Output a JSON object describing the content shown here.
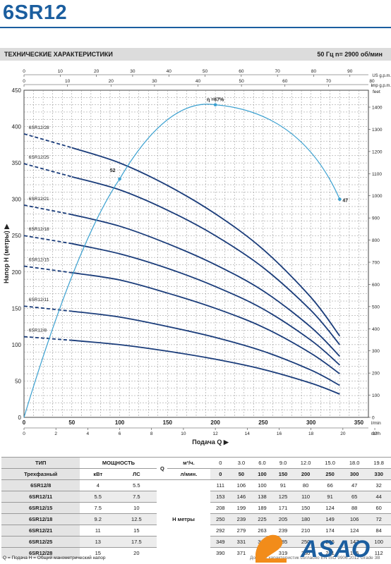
{
  "page": {
    "title": "6SR12",
    "section_title": "ТЕХНИЧЕСКИЕ ХАРАКТЕРИСТИКИ",
    "freq_label": "50 Гц   n= 2900  об/мин"
  },
  "chart_data": {
    "type": "line",
    "ylabel": "Напор  H  (метры)  ▶",
    "xlabel": "Подача  Q  ▶",
    "x_unit": "l/min",
    "top_axis1_unit": "US g.p.m.",
    "top_axis2_unit": "Imp g.p.m.",
    "right_axis_unit": "feet",
    "bottom_axis2_unit": "m³/h",
    "xlim": [
      0,
      360
    ],
    "ylim": [
      0,
      450
    ],
    "x_ticks": [
      0,
      50,
      100,
      150,
      200,
      250,
      300,
      350
    ],
    "y_ticks": [
      0,
      50,
      100,
      150,
      200,
      250,
      300,
      350,
      400,
      450
    ],
    "top_ticks_us": [
      0,
      10,
      20,
      30,
      40,
      50,
      60,
      70,
      80,
      90
    ],
    "top_ticks_imp": [
      0,
      10,
      20,
      30,
      40,
      50,
      60,
      70,
      80
    ],
    "bottom_ticks_m3h": [
      0,
      2,
      4,
      6,
      8,
      10,
      12,
      14,
      16,
      18,
      20,
      22
    ],
    "right_ticks_feet": [
      0,
      100,
      200,
      300,
      400,
      500,
      600,
      700,
      800,
      900,
      1000,
      1100,
      1200,
      1300,
      1400
    ],
    "grid": true,
    "series": [
      {
        "name": "6SR12/8",
        "x": [
          0,
          50,
          100,
          150,
          200,
          250,
          300,
          330
        ],
        "values": [
          111,
          106,
          100,
          91,
          80,
          66,
          47,
          32
        ]
      },
      {
        "name": "6SR12/11",
        "x": [
          0,
          50,
          100,
          150,
          200,
          250,
          300,
          330
        ],
        "values": [
          153,
          146,
          138,
          125,
          110,
          91,
          65,
          44
        ]
      },
      {
        "name": "6SR12/15",
        "x": [
          0,
          50,
          100,
          150,
          200,
          250,
          300,
          330
        ],
        "values": [
          208,
          199,
          189,
          171,
          150,
          124,
          88,
          60
        ]
      },
      {
        "name": "6SR12/18",
        "x": [
          0,
          50,
          100,
          150,
          200,
          250,
          300,
          330
        ],
        "values": [
          250,
          239,
          225,
          205,
          180,
          149,
          106,
          72
        ]
      },
      {
        "name": "6SR12/21",
        "x": [
          0,
          50,
          100,
          150,
          200,
          250,
          300,
          330
        ],
        "values": [
          292,
          279,
          263,
          239,
          210,
          174,
          124,
          84
        ]
      },
      {
        "name": "6SR12/25",
        "x": [
          0,
          50,
          100,
          150,
          200,
          250,
          300,
          330
        ],
        "values": [
          349,
          331,
          313,
          285,
          250,
          206,
          147,
          100
        ]
      },
      {
        "name": "6SR12/28",
        "x": [
          0,
          50,
          100,
          150,
          200,
          250,
          300,
          330
        ],
        "values": [
          390,
          371,
          350,
          319,
          280,
          231,
          165,
          112
        ]
      }
    ],
    "efficiency_curve": {
      "label_peak": "η =67%",
      "points": [
        [
          0,
          0
        ],
        [
          100,
          328
        ],
        [
          200,
          430
        ],
        [
          330,
          300
        ]
      ],
      "annotations": [
        {
          "text": "52",
          "x": 100,
          "y": 328
        },
        {
          "text": "47",
          "x": 330,
          "y": 300
        }
      ]
    },
    "colors": {
      "curves": "#1a3c7a",
      "efficiency": "#3aa0d0",
      "grid": "#8c8c8c"
    }
  },
  "table": {
    "headers": {
      "tip": "ТИП",
      "power": "МОЩНОСТЬ",
      "q": "Q",
      "unit_m3h": "м³/ч.",
      "trehfazny": "Трехфазный",
      "kw": "кВт",
      "hp": "ЛС",
      "unit_lmin": "л/мин.",
      "h_label": "H  метры"
    },
    "q_m3h": [
      "0",
      "3.0",
      "6.0",
      "9.0",
      "12.0",
      "15.0",
      "18.0",
      "19.8"
    ],
    "q_lmin": [
      "0",
      "50",
      "100",
      "150",
      "200",
      "250",
      "300",
      "330"
    ],
    "rows": [
      {
        "type": "6SR12/8",
        "kw": "4",
        "hp": "5.5",
        "h": [
          "111",
          "106",
          "100",
          "91",
          "80",
          "66",
          "47",
          "32"
        ]
      },
      {
        "type": "6SR12/11",
        "kw": "5.5",
        "hp": "7.5",
        "h": [
          "153",
          "146",
          "138",
          "125",
          "110",
          "91",
          "65",
          "44"
        ]
      },
      {
        "type": "6SR12/15",
        "kw": "7.5",
        "hp": "10",
        "h": [
          "208",
          "199",
          "189",
          "171",
          "150",
          "124",
          "88",
          "60"
        ]
      },
      {
        "type": "6SR12/18",
        "kw": "9.2",
        "hp": "12.5",
        "h": [
          "250",
          "239",
          "225",
          "205",
          "180",
          "149",
          "106",
          "72"
        ]
      },
      {
        "type": "6SR12/21",
        "kw": "11",
        "hp": "15",
        "h": [
          "292",
          "279",
          "263",
          "239",
          "210",
          "174",
          "124",
          "84"
        ]
      },
      {
        "type": "6SR12/25",
        "kw": "13",
        "hp": "17.5",
        "h": [
          "349",
          "331",
          "313",
          "285",
          "250",
          "206",
          "147",
          "100"
        ]
      },
      {
        "type": "6SR12/28",
        "kw": "15",
        "hp": "20",
        "h": [
          "390",
          "371",
          "350",
          "319",
          "280",
          "231",
          "165",
          "112"
        ]
      }
    ],
    "footnote": "Q = Подача   H = Общий манометрический напор",
    "footnote_right": "Допуски характеристик согласно EN ISO 9906:2012 Grade 3B"
  },
  "logo": {
    "text": "ASAO",
    "colors": {
      "orange": "#f28c1a",
      "blue": "#1b5e9f"
    }
  }
}
